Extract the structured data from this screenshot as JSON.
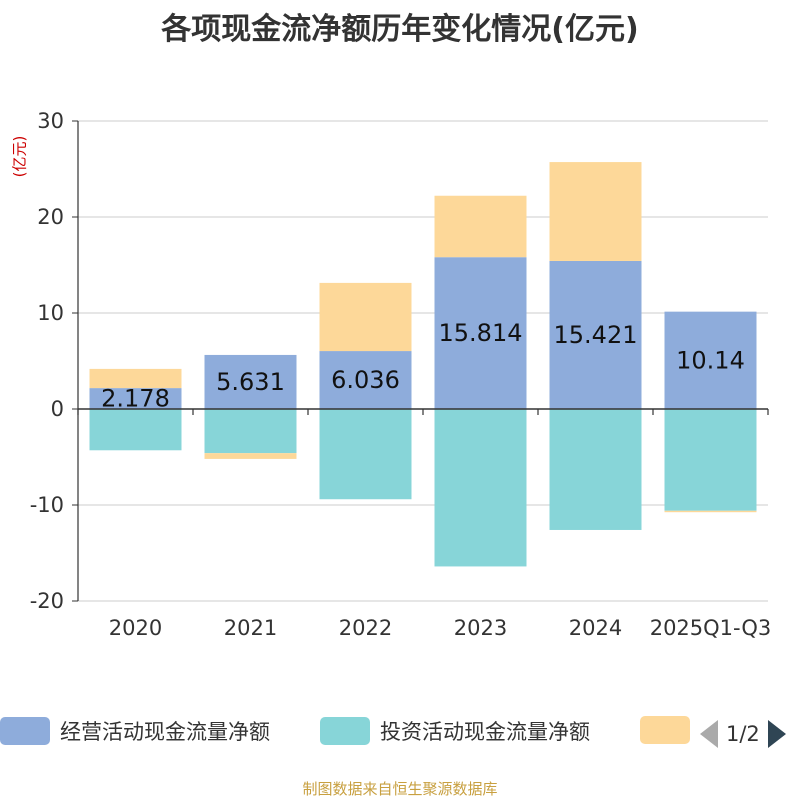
{
  "chart_data": {
    "type": "bar",
    "stacked": true,
    "title": "各项现金流净额历年变化情况(亿元)",
    "ylabel": "(亿元)",
    "xlabel": "",
    "ylim": [
      -20,
      30
    ],
    "yticks": [
      30,
      20,
      10,
      0,
      -10,
      -20
    ],
    "categories": [
      "2020",
      "2021",
      "2022",
      "2023",
      "2024",
      "2025Q1-Q3"
    ],
    "series": [
      {
        "name": "经营活动现金流量净额",
        "color": "#8eacdb",
        "values": [
          2.178,
          5.631,
          6.036,
          15.814,
          15.421,
          10.14
        ]
      },
      {
        "name": "投资活动现金流量净额",
        "color": "#87d5d8",
        "values": [
          -4.3,
          -4.6,
          -9.4,
          -16.4,
          -12.6,
          -10.6
        ]
      },
      {
        "name": "",
        "color": "#fdd899",
        "values": [
          2.0,
          -0.6,
          7.1,
          6.4,
          10.3,
          -0.15
        ]
      }
    ],
    "data_labels": [
      "2.178",
      "5.631",
      "6.036",
      "15.814",
      "15.421",
      "10.14"
    ]
  },
  "legend": {
    "item0": "经营活动现金流量净额",
    "item1": "投资活动现金流量净额",
    "page": "1/2"
  },
  "source": "制图数据来自恒生聚源数据库"
}
